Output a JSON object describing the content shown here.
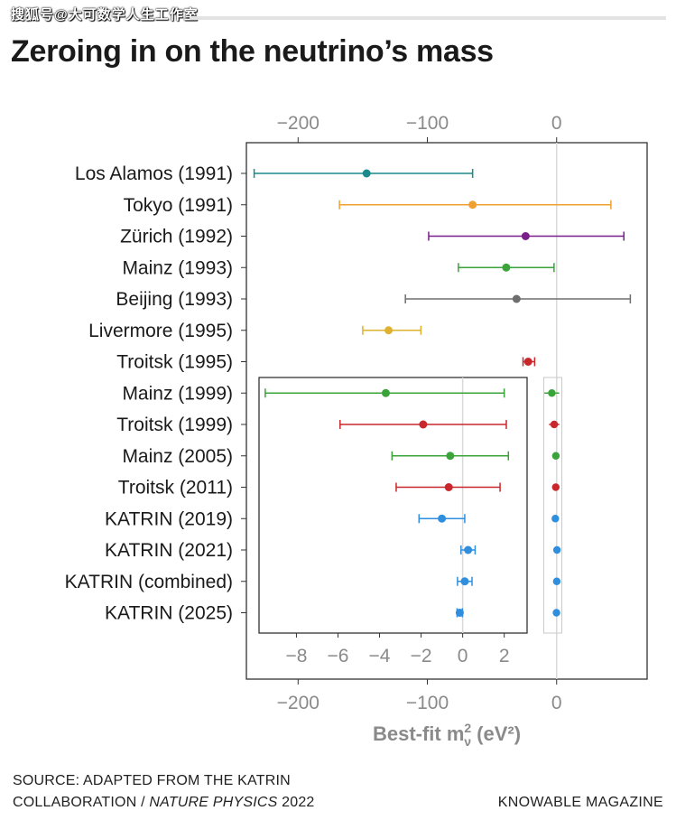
{
  "watermark": {
    "text": "搜狐号@大可数学人生工作室"
  },
  "title": "Zeroing in on the neutrino’s mass",
  "source": {
    "line1": "SOURCE: ADAPTED FROM THE KATRIN",
    "line2_prefix": "COLLABORATION / ",
    "line2_italic": "NATURE PHYSICS",
    "line2_suffix": " 2022"
  },
  "brand": "KNOWABLE MAGAZINE",
  "colors": {
    "teal": "#1b8a8c",
    "orange": "#f0a030",
    "purple": "#7a1f8a",
    "green": "#3aa33a",
    "gray": "#6e6e6e",
    "gold": "#e0b030",
    "red": "#c8282c",
    "blue": "#2f8fde",
    "axis": "#8a8a8a"
  },
  "chart_data": {
    "type": "scatter",
    "subtype": "errorbar-forest",
    "xlabel_prefix": "Best-fit m",
    "xlabel_super": "2",
    "xlabel_sub": "ν",
    "xlabel_unit": " (eV²)",
    "main_axis": {
      "xlim": [
        -240,
        70
      ],
      "ticks": [
        -200,
        -100,
        0
      ],
      "tick_labels": [
        "−200",
        "−100",
        "0"
      ]
    },
    "inset_axis": {
      "xlim": [
        -9.8,
        3.1
      ],
      "ticks": [
        -8,
        -6,
        -4,
        -2,
        0,
        2
      ],
      "tick_labels": [
        "−8",
        "−6",
        "−4",
        "−2",
        "0",
        "2"
      ]
    },
    "experiments": [
      {
        "label": "Los Alamos (1991)",
        "color": "teal",
        "value": -147,
        "low": -234,
        "high": -65,
        "panel": "main"
      },
      {
        "label": "Tokyo (1991)",
        "color": "orange",
        "value": -65,
        "low": -168,
        "high": 42,
        "panel": "main"
      },
      {
        "label": "Zürich (1992)",
        "color": "purple",
        "value": -24,
        "low": -99,
        "high": 52,
        "panel": "main"
      },
      {
        "label": "Mainz (1993)",
        "color": "green",
        "value": -39,
        "low": -76,
        "high": -2,
        "panel": "main"
      },
      {
        "label": "Beijing (1993)",
        "color": "gray",
        "value": -31,
        "low": -117,
        "high": 57,
        "panel": "main"
      },
      {
        "label": "Livermore (1995)",
        "color": "gold",
        "value": -130,
        "low": -150,
        "high": -105,
        "panel": "main"
      },
      {
        "label": "Troitsk (1995)",
        "color": "red",
        "value": -22,
        "low": -26,
        "high": -17,
        "panel": "main"
      },
      {
        "label": "Mainz (1999)",
        "color": "green",
        "value": -3.7,
        "low": -9.5,
        "high": 2.0,
        "panel": "inset"
      },
      {
        "label": "Troitsk (1999)",
        "color": "red",
        "value": -1.9,
        "low": -5.9,
        "high": 2.1,
        "panel": "inset"
      },
      {
        "label": "Mainz (2005)",
        "color": "green",
        "value": -0.6,
        "low": -3.4,
        "high": 2.2,
        "panel": "inset"
      },
      {
        "label": "Troitsk (2011)",
        "color": "red",
        "value": -0.67,
        "low": -3.2,
        "high": 1.8,
        "panel": "inset"
      },
      {
        "label": "KATRIN (2019)",
        "color": "blue",
        "value": -1.0,
        "low": -2.1,
        "high": 0.1,
        "panel": "inset"
      },
      {
        "label": "KATRIN (2021)",
        "color": "blue",
        "value": 0.26,
        "low": -0.08,
        "high": 0.6,
        "panel": "inset"
      },
      {
        "label": "KATRIN (combined)",
        "color": "blue",
        "value": 0.1,
        "low": -0.25,
        "high": 0.45,
        "panel": "inset"
      },
      {
        "label": "KATRIN (2025)",
        "color": "blue",
        "value": -0.14,
        "low": -0.27,
        "high": -0.01,
        "panel": "inset"
      }
    ]
  }
}
